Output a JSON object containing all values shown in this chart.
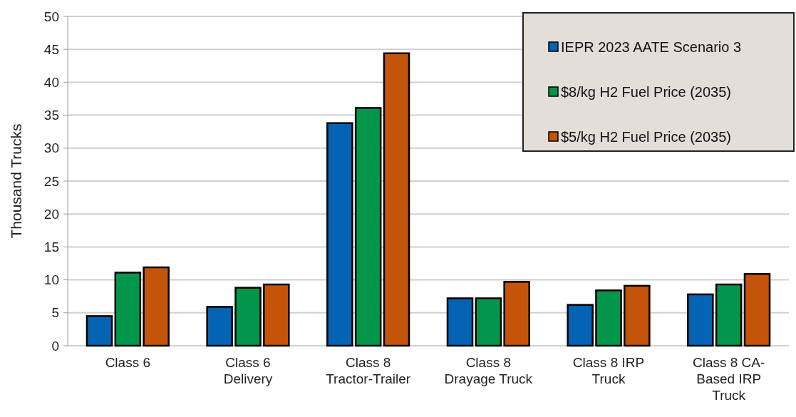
{
  "chart_data": {
    "type": "bar",
    "ylabel": "Thousand Trucks",
    "categories": [
      "Class 6",
      "Class 6\nDelivery",
      "Class 8\nTractor-Trailer",
      "Class 8\nDrayage Truck",
      "Class 8 IRP\nTruck",
      "Class 8 CA-\nBased IRP\nTruck"
    ],
    "series": [
      {
        "name": "IEPR 2023 AATE Scenario 3",
        "color": "#0563b4",
        "values": [
          4.5,
          5.9,
          33.8,
          7.2,
          6.2,
          7.8
        ]
      },
      {
        "name": "$8/kg H2 Fuel Price (2035)",
        "color": "#03964a",
        "values": [
          11.1,
          8.8,
          36.1,
          7.2,
          8.4,
          9.3
        ]
      },
      {
        "name": "$5/kg H2 Fuel Price (2035)",
        "color": "#c5540b",
        "values": [
          11.9,
          9.3,
          44.4,
          9.7,
          9.1,
          10.9
        ]
      }
    ],
    "ylim": [
      0,
      50
    ],
    "yticks": [
      0,
      5,
      10,
      15,
      20,
      25,
      30,
      35,
      40,
      45,
      50
    ],
    "grid": "y",
    "legend": "top right"
  }
}
